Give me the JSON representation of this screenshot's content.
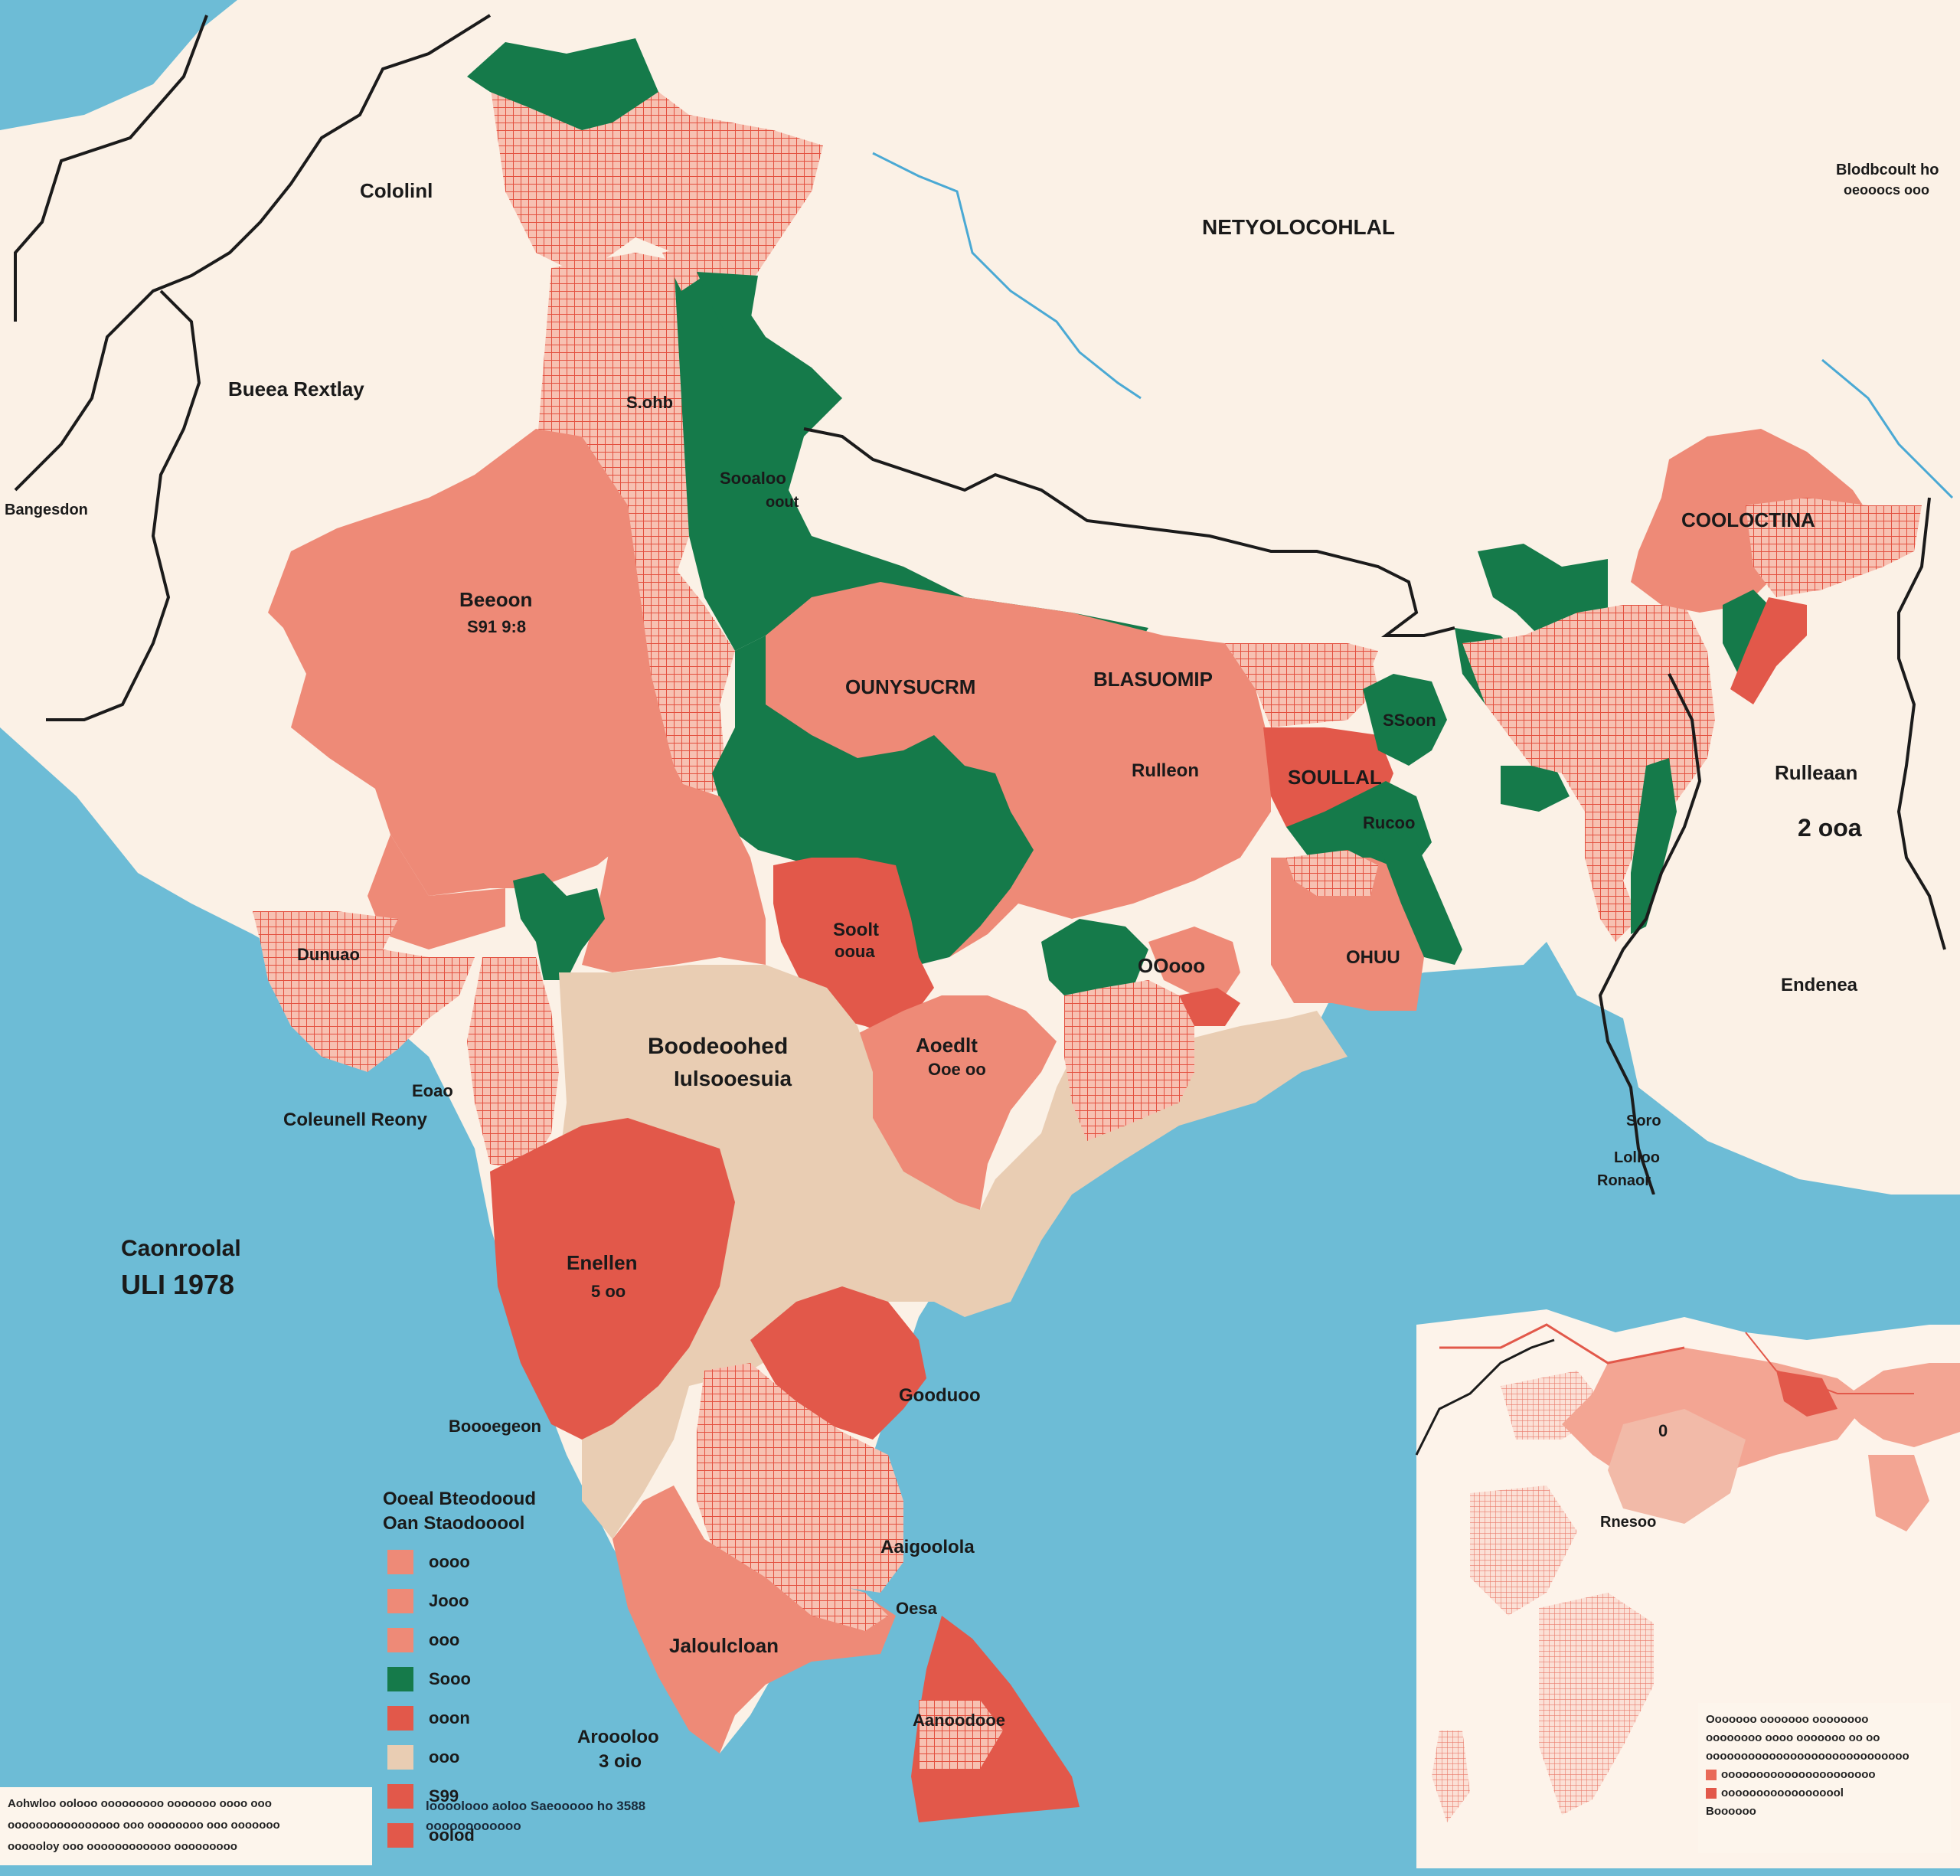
{
  "colors": {
    "sea": "#6dbcd6",
    "land": "#fbf1e6",
    "salmon": "#ee8a77",
    "red": "#e2584a",
    "green": "#157a4a",
    "beige": "#e9cdb3",
    "hatch": "#e96a58"
  },
  "labels": {
    "north_neighbor": "Cololinl",
    "west_country": "Bueea Rextlay",
    "west_edge": "Bangesdon",
    "tibet": "NETYOLOCOHLAL",
    "northeast_corner_1": "Blodbcoult ho",
    "northeast_corner_2": "oeooocs ooo",
    "northeast_state": "COOLOCTINA",
    "east_name": "Rulleaan",
    "east_value": "2 ooa",
    "east_lower": "Endenea",
    "kashmir_mark": "S.ohb",
    "punjab_label_1": "Sooaloo",
    "punjab_label_2": "oout",
    "rajasthan_1": "Beeoon",
    "rajasthan_2": "S91 9:8",
    "gujarat": "Dunuao",
    "up": "OUNYSUCRM",
    "bihar": "BLASUOMIP",
    "bihar_sub": "Rulleon",
    "bengal": "SOULLAL",
    "bengal_sub": "Rucoo",
    "odisha": "OHUU",
    "mp_1": "Soolt",
    "mp_2": "ooua",
    "chhattis_1": "Aoedlt",
    "chhattis_2": "Ooe oo",
    "jharkhand": "OOooo",
    "deccan_1": "Boodeoohed",
    "deccan_2": "Iulsooesuia",
    "west_coast_1": "Eoao",
    "west_coast_2": "Coleunell Reony",
    "karnataka_1": "Enellen",
    "karnataka_2": "5 oo",
    "sea_label_1": "Caonroolal",
    "sea_label_2": "ULI 1978",
    "coast_label": "Boooegeon",
    "east_coast": "Gooduoo",
    "tamil_label": "Aaigoolola",
    "kerala": "Jaloulcloan",
    "ceylon_label": "Oesa",
    "sri_lanka": "Aanoodooe",
    "south_label_1": "Aroooloo",
    "south_label_2": "3 oio",
    "bay_1": "Soro",
    "bay_2": "Lolloo",
    "bay_3": "Ronaor",
    "north_pocket": "SSoon"
  },
  "legend": {
    "title_1": "Ooeal Bteodooud",
    "title_2": "Oan Staodooool",
    "items": [
      {
        "label": "oooo",
        "color": "#ee8a77"
      },
      {
        "label": "Jooo",
        "color": "#ee8a77"
      },
      {
        "label": "ooo",
        "color": "#ee8a77"
      },
      {
        "label": "Sooo",
        "color": "#157a4a"
      },
      {
        "label": "ooon",
        "color": "#e2584a"
      },
      {
        "label": "ooo",
        "color": "#e9cdb3"
      },
      {
        "label": "S99",
        "color": "#e2584a"
      },
      {
        "label": "oolod",
        "color": "#e2584a"
      }
    ]
  },
  "bottom_notes": {
    "left_lines": [
      "Aohwloo oolooo ooooooooo ooooooo oooo ooo",
      "oooooooooooooooo ooo oooooooo ooo ooooooo",
      "oooooloy ooo oooooooooooo ooooooooo"
    ],
    "center_lines": [
      "loooolooo aoloo  Saeooooo ho 3588",
      "oooooooooooo"
    ]
  },
  "inset": {
    "center_mark": "0",
    "label": "Rnesoo",
    "note_lines": [
      "Ooooooo ooooooo oooooooo",
      "oooooooo oooo ooooooo oo oo",
      "ooooooooooooooooooooooooooooo"
    ],
    "legend_items": [
      {
        "label": "oooooooooooooooooooooo",
        "color": "#e96a58"
      },
      {
        "label": "oooooooooooooooool",
        "color": "#e2584a"
      }
    ],
    "footer": "Boooooo"
  }
}
